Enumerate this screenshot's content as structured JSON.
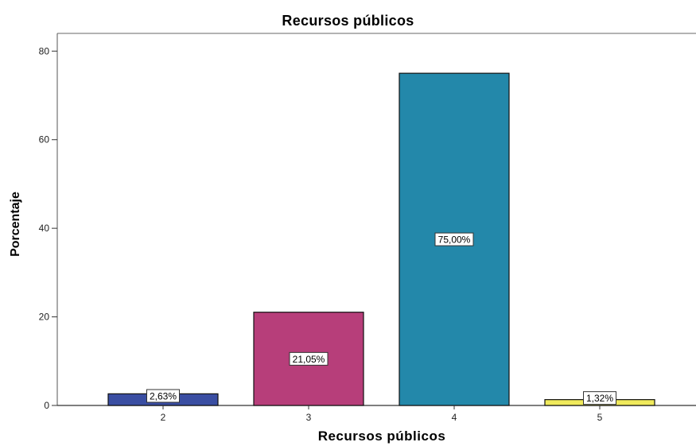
{
  "chart_data": {
    "type": "bar",
    "title": "Recursos públicos",
    "xlabel": "Recursos públicos",
    "ylabel": "Porcentaje",
    "categories": [
      "2",
      "3",
      "4",
      "5"
    ],
    "values": [
      2.63,
      21.05,
      75.0,
      1.32
    ],
    "data_labels": [
      "2,63%",
      "21,05%",
      "75,00%",
      "1,32%"
    ],
    "colors": [
      "#3a4ea2",
      "#b73e7a",
      "#2388aa",
      "#f0ea5c"
    ],
    "ylim": [
      0,
      84
    ],
    "yticks": [
      0,
      20,
      40,
      60,
      80
    ],
    "grid": false,
    "legend": "none"
  }
}
